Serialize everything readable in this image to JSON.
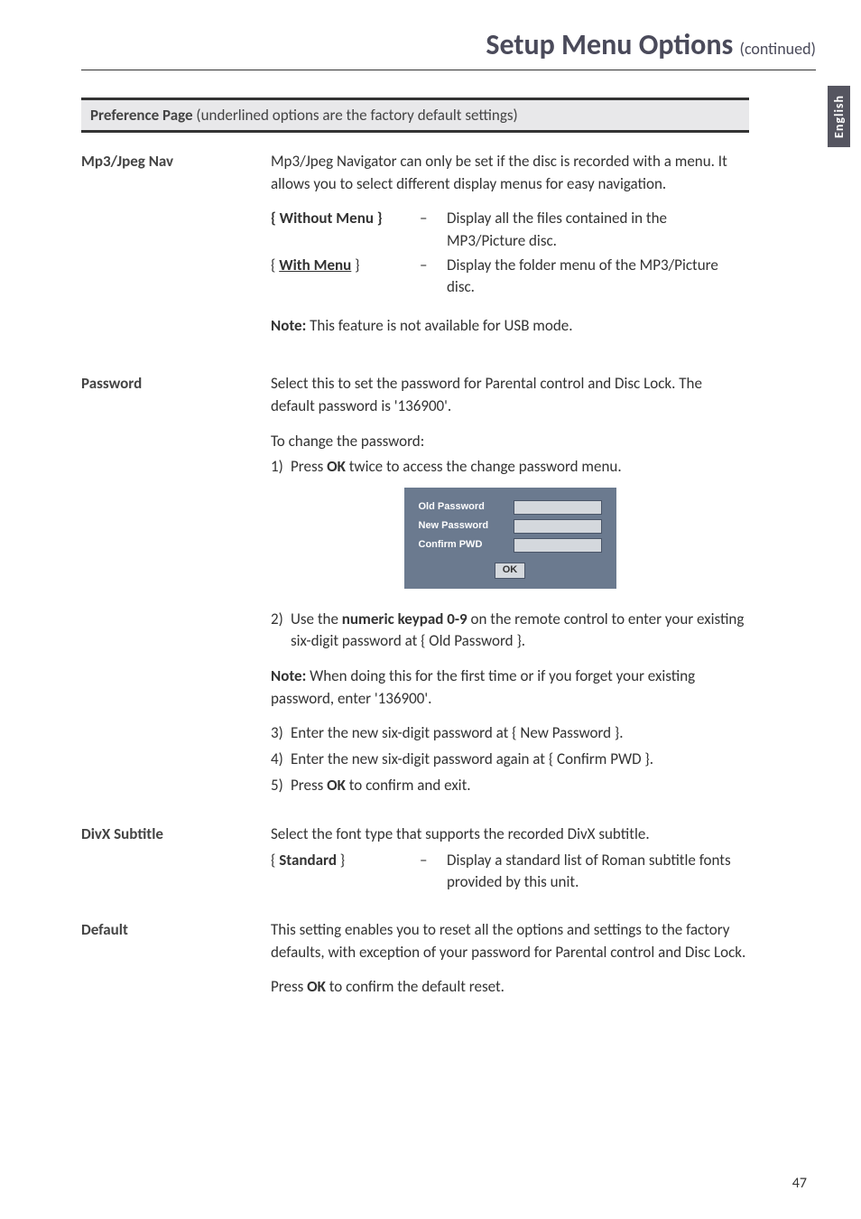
{
  "page": {
    "title_main": "Setup Menu Options",
    "title_suffix": "(continued)",
    "side_tab": "English",
    "page_number": "47"
  },
  "section": {
    "title_bold": "Preference Page",
    "title_rest": " (underlined options are the factory default settings)"
  },
  "mp3": {
    "label": "Mp3/Jpeg Nav",
    "intro": "Mp3/Jpeg Navigator can only be set if the disc is recorded with a menu. It allows you to select different display menus for easy navigation.",
    "opt1_name": "{ Without Menu }",
    "opt1_dash": "–",
    "opt1_desc": "Display all the files contained in the MP3/Picture disc.",
    "opt2_name_open": "{ ",
    "opt2_name_text": "With Menu",
    "opt2_name_close": " }",
    "opt2_dash": "–",
    "opt2_desc": "Display the folder menu of the MP3/Picture disc.",
    "note_label": "Note: ",
    "note_text": " This feature is not available for USB mode."
  },
  "password": {
    "label": "Password",
    "intro": "Select this to set the password for Parental control and Disc Lock. The default password is '136900'.",
    "change_intro": "To change the password:",
    "step1_num": "1)",
    "step1_a": "Press ",
    "step1_bold": "OK",
    "step1_b": " twice to access the change password menu.",
    "dialog": {
      "old": "Old  Password",
      "new": "New Password",
      "confirm": "Confirm PWD",
      "ok": "OK"
    },
    "step2_num": "2)",
    "step2_a": "Use the ",
    "step2_bold": "numeric keypad 0-9",
    "step2_b": " on the remote control to enter your existing six-digit password at { Old Password }.",
    "note2_label": "Note: ",
    "note2_text": " When doing this for the first time or if you forget your existing password, enter '136900'.",
    "step3_num": "3)",
    "step3": "Enter the new six-digit password at { New Password }.",
    "step4_num": "4)",
    "step4": "Enter the new six-digit password again at { Confirm PWD }.",
    "step5_num": "5)",
    "step5_a": "Press ",
    "step5_bold": "OK",
    "step5_b": " to confirm and exit."
  },
  "divx": {
    "label": "DivX Subtitle",
    "intro": "Select the font type that supports the recorded DivX subtitle.",
    "opt_name": "{ Standard }",
    "opt_dash": "–",
    "opt_desc": "Display a standard list of Roman subtitle fonts provided by this unit."
  },
  "default": {
    "label": "Default",
    "intro": "This setting enables you to reset all the options and settings to the factory defaults, with exception of your password for Parental control and Disc Lock.",
    "press_a": "Press ",
    "press_bold": "OK",
    "press_b": " to confirm the default reset."
  }
}
